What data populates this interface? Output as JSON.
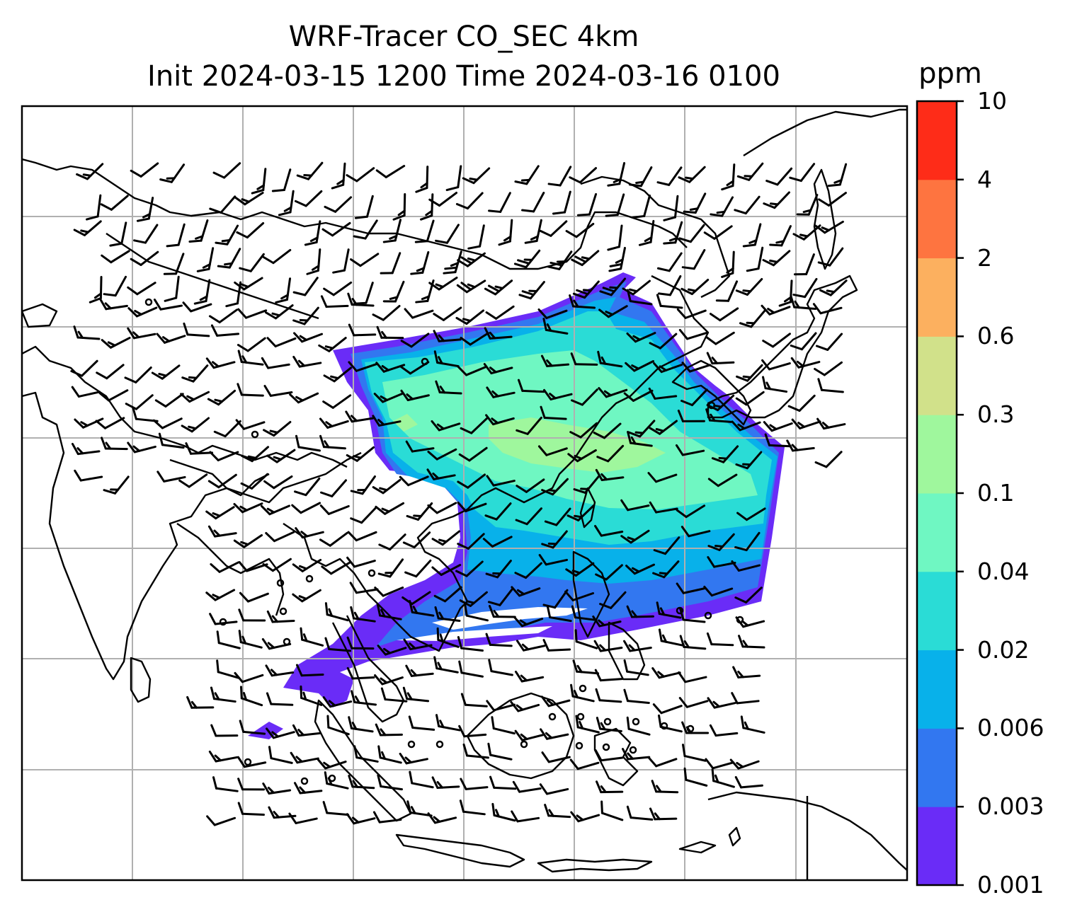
{
  "title": {
    "line1": "WRF-Tracer CO_SEC 4km",
    "line2": "Init 2024-03-15 1200 Time 2024-03-16 0100"
  },
  "colorbar": {
    "unit": "ppm",
    "levels": [
      "0.001",
      "0.003",
      "0.006",
      "0.02",
      "0.04",
      "0.1",
      "0.3",
      "0.6",
      "2",
      "4",
      "10"
    ],
    "colors": [
      "#6a2cf7",
      "#3277f0",
      "#08b1ea",
      "#2adcd6",
      "#6ff7c2",
      "#9ff79d",
      "#d1e18a",
      "#fcb05f",
      "#fe7440",
      "#fe2c18"
    ]
  },
  "map": {
    "gridlines": true,
    "coastline_color": "#000000",
    "grid_color": "#b0b0b0",
    "background": "#ffffff",
    "overlay": "wind barbs",
    "field": "CO_SEC tracer concentration"
  }
}
